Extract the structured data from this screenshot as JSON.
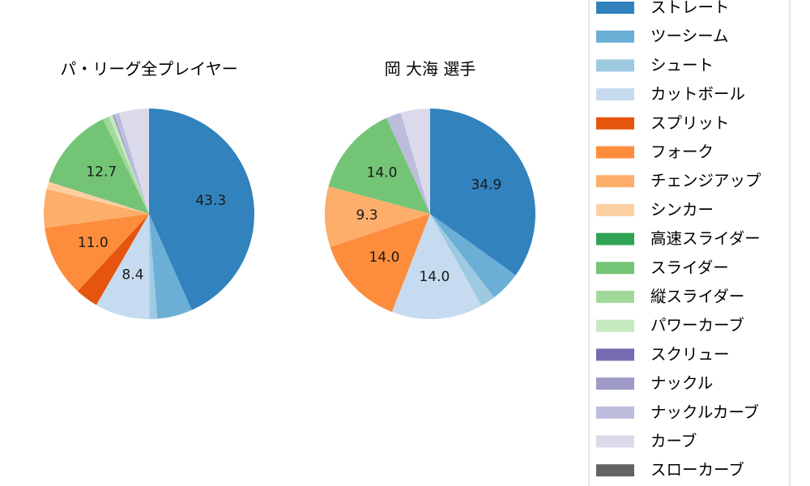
{
  "colors": {
    "ストレート": "#3182bd",
    "ツーシーム": "#6baed6",
    "シュート": "#9ecae1",
    "カットボール": "#c6dbef",
    "スプリット": "#e6550d",
    "フォーク": "#fd8d3c",
    "チェンジアップ": "#fdae6b",
    "シンカー": "#fdd0a2",
    "高速スライダー": "#31a354",
    "スライダー": "#74c476",
    "縦スライダー": "#a1d99b",
    "パワーカーブ": "#c7e9c0",
    "スクリュー": "#756bb1",
    "ナックル": "#9e9ac8",
    "ナックルカーブ": "#bcbddc",
    "カーブ": "#dadaeb",
    "スローカーブ": "#636363"
  },
  "chart_data": [
    {
      "type": "pie",
      "title": "パ・リーグ全プレイヤー",
      "slices": [
        {
          "name": "ストレート",
          "value": 43.3,
          "label": "43.3"
        },
        {
          "name": "ツーシーム",
          "value": 5.4,
          "label": ""
        },
        {
          "name": "シュート",
          "value": 1.2,
          "label": ""
        },
        {
          "name": "カットボール",
          "value": 8.4,
          "label": "8.4"
        },
        {
          "name": "スプリット",
          "value": 3.5,
          "label": ""
        },
        {
          "name": "フォーク",
          "value": 11.0,
          "label": "11.0"
        },
        {
          "name": "チェンジアップ",
          "value": 5.9,
          "label": ""
        },
        {
          "name": "シンカー",
          "value": 1.2,
          "label": ""
        },
        {
          "name": "高速スライダー",
          "value": 0.1,
          "label": ""
        },
        {
          "name": "スライダー",
          "value": 12.7,
          "label": "12.7"
        },
        {
          "name": "縦スライダー",
          "value": 1.0,
          "label": ""
        },
        {
          "name": "パワーカーブ",
          "value": 0.6,
          "label": ""
        },
        {
          "name": "スクリュー",
          "value": 0.1,
          "label": ""
        },
        {
          "name": "ナックル",
          "value": 0.1,
          "label": ""
        },
        {
          "name": "ナックルカーブ",
          "value": 0.8,
          "label": ""
        },
        {
          "name": "カーブ",
          "value": 4.6,
          "label": ""
        },
        {
          "name": "スローカーブ",
          "value": 0.0,
          "label": ""
        }
      ]
    },
    {
      "type": "pie",
      "title": "岡 大海  選手",
      "slices": [
        {
          "name": "ストレート",
          "value": 34.9,
          "label": "34.9"
        },
        {
          "name": "ツーシーム",
          "value": 4.7,
          "label": ""
        },
        {
          "name": "シュート",
          "value": 2.3,
          "label": ""
        },
        {
          "name": "カットボール",
          "value": 14.0,
          "label": "14.0"
        },
        {
          "name": "フォーク",
          "value": 14.0,
          "label": "14.0"
        },
        {
          "name": "チェンジアップ",
          "value": 9.3,
          "label": "9.3"
        },
        {
          "name": "スライダー",
          "value": 14.0,
          "label": "14.0"
        },
        {
          "name": "ナックルカーブ",
          "value": 2.3,
          "label": ""
        },
        {
          "name": "カーブ",
          "value": 4.5,
          "label": ""
        }
      ]
    }
  ],
  "legend": {
    "items": [
      "ストレート",
      "ツーシーム",
      "シュート",
      "カットボール",
      "スプリット",
      "フォーク",
      "チェンジアップ",
      "シンカー",
      "高速スライダー",
      "スライダー",
      "縦スライダー",
      "パワーカーブ",
      "スクリュー",
      "ナックル",
      "ナックルカーブ",
      "カーブ",
      "スローカーブ"
    ]
  }
}
